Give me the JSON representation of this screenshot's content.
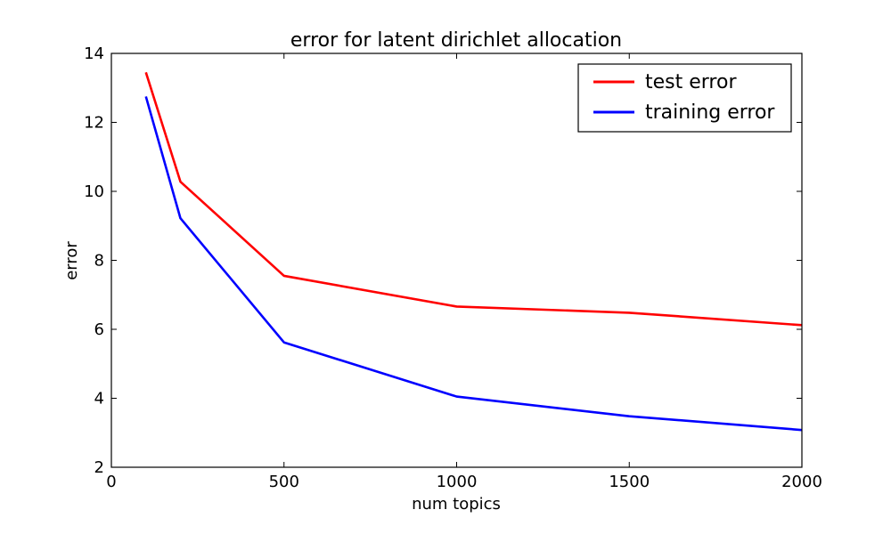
{
  "chart_data": {
    "type": "line",
    "title": "error for latent dirichlet allocation",
    "xlabel": "num topics",
    "ylabel": "error",
    "xlim": [
      0,
      2000
    ],
    "ylim": [
      2,
      14
    ],
    "x_ticks": [
      0,
      500,
      1000,
      1500,
      2000
    ],
    "y_ticks": [
      2,
      4,
      6,
      8,
      10,
      12,
      14
    ],
    "grid": false,
    "legend_position": "top-right",
    "x": [
      100,
      200,
      500,
      1000,
      1500,
      2000
    ],
    "series": [
      {
        "name": "test error",
        "color": "#ff0000",
        "values": [
          13.45,
          10.28,
          7.55,
          6.66,
          6.48,
          6.12
        ]
      },
      {
        "name": "training error",
        "color": "#0000ff",
        "values": [
          12.75,
          9.22,
          5.62,
          4.05,
          3.48,
          3.08
        ]
      }
    ]
  }
}
